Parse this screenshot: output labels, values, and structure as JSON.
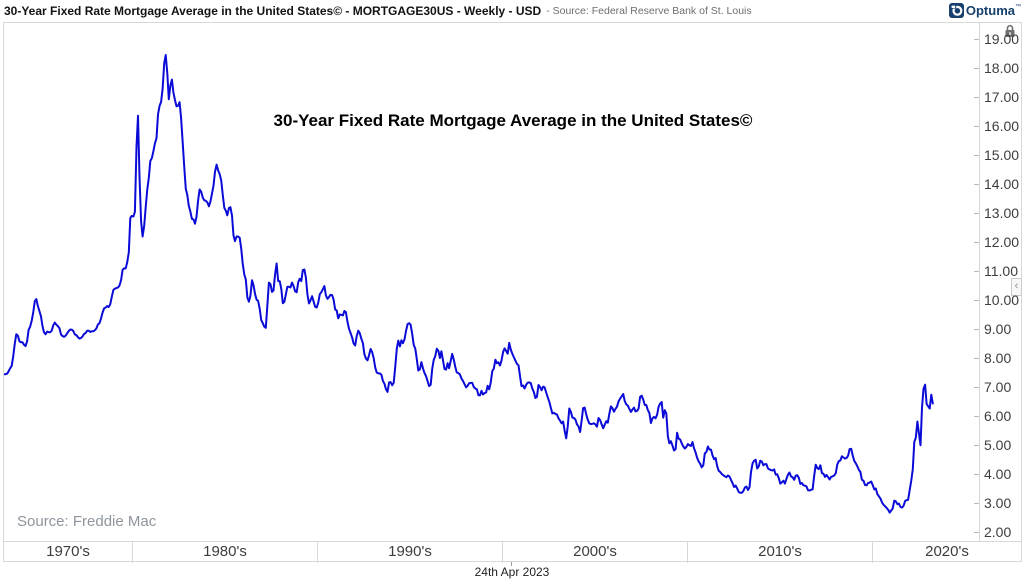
{
  "header": {
    "title_bold": "30-Year Fixed Rate Mortgage Average in the United States© - MORTGAGE30US - Weekly - USD",
    "title_source": "- Source: Federal Reserve Bank of St. Louis",
    "logo_text": "Optuma",
    "logo_tm": "™"
  },
  "footer": {
    "date_label": "24th Apr 2023"
  },
  "chart_data": {
    "type": "line",
    "title": "30-Year Fixed Rate Mortgage Average in the United States©",
    "source_annotation": "Source: Freddie Mac",
    "series_name": "MORTGAGE30US",
    "line_color": "#0b0bd8",
    "grid": false,
    "legend": false,
    "ylim": [
      2,
      19
    ],
    "y_ticks": [
      "19.00",
      "18.00",
      "17.00",
      "16.00",
      "15.00",
      "14.00",
      "13.00",
      "12.00",
      "11.00",
      "10.00",
      "9.00",
      "8.00",
      "7.00",
      "6.00",
      "5.00",
      "4.00",
      "3.00",
      "2.00"
    ],
    "x_range": [
      1973.0,
      2025.75
    ],
    "x_decades": {
      "boundaries": [
        1980,
        1990,
        2000,
        2010,
        2020
      ],
      "labels": [
        "1970's",
        "1980's",
        "1990's",
        "2000's",
        "2010's",
        "2020's"
      ]
    },
    "series": [
      {
        "name": "MORTGAGE30US",
        "start_year": 1973.0,
        "points_per_year": 12,
        "values": [
          7.44,
          7.44,
          7.46,
          7.54,
          7.65,
          7.73,
          8.05,
          8.5,
          8.82,
          8.77,
          8.58,
          8.54,
          8.54,
          8.46,
          8.41,
          8.58,
          8.97,
          9.09,
          9.28,
          9.59,
          9.96,
          10.03,
          9.79,
          9.62,
          9.43,
          9.1,
          8.89,
          8.82,
          8.91,
          8.89,
          8.89,
          8.94,
          9.13,
          9.22,
          9.15,
          9.1,
          9.02,
          8.81,
          8.76,
          8.73,
          8.77,
          8.85,
          8.93,
          8.98,
          8.98,
          8.93,
          8.81,
          8.79,
          8.72,
          8.67,
          8.69,
          8.75,
          8.83,
          8.86,
          8.94,
          8.94,
          8.9,
          8.92,
          8.92,
          8.96,
          9.02,
          9.16,
          9.2,
          9.36,
          9.57,
          9.71,
          9.74,
          9.79,
          9.76,
          9.86,
          10.11,
          10.35,
          10.39,
          10.41,
          10.43,
          10.5,
          10.69,
          11.04,
          11.09,
          11.09,
          11.3,
          11.64,
          12.83,
          12.9,
          12.88,
          13.04,
          15.28,
          16.35,
          14.26,
          12.71,
          12.19,
          12.56,
          13.2,
          13.79,
          14.21,
          14.79,
          14.9,
          15.13,
          15.4,
          15.58,
          16.4,
          16.7,
          16.83,
          17.28,
          18.16,
          18.45,
          17.82,
          16.92,
          17.4,
          17.6,
          17.16,
          16.89,
          16.68,
          16.7,
          16.82,
          16.27,
          15.43,
          14.61,
          13.83,
          13.62,
          13.25,
          13.04,
          12.8,
          12.78,
          12.63,
          12.87,
          13.43,
          13.81,
          13.73,
          13.54,
          13.44,
          13.42,
          13.37,
          13.23,
          13.39,
          13.65,
          13.94,
          14.42,
          14.67,
          14.47,
          14.35,
          14.13,
          13.64,
          13.18,
          13.08,
          12.92,
          13.17,
          13.2,
          12.91,
          12.22,
          12.03,
          12.19,
          12.19,
          12.14,
          11.78,
          11.26,
          10.88,
          10.71,
          10.08,
          9.94,
          10.14,
          10.68,
          10.51,
          10.2,
          10.01,
          9.97,
          9.7,
          9.31,
          9.2,
          9.08,
          9.04,
          9.83,
          10.6,
          10.54,
          10.28,
          10.33,
          10.89,
          11.26,
          10.65,
          10.65,
          10.38,
          9.89,
          9.93,
          10.2,
          10.46,
          10.46,
          10.43,
          10.6,
          10.48,
          10.3,
          10.27,
          10.61,
          10.73,
          10.65,
          11.03,
          11.05,
          10.77,
          10.2,
          9.88,
          9.99,
          10.13,
          9.95,
          9.77,
          9.74,
          9.9,
          10.2,
          10.27,
          10.37,
          10.48,
          10.16,
          10.04,
          10.1,
          10.18,
          10.17,
          10.01,
          9.67,
          9.64,
          9.37,
          9.5,
          9.49,
          9.47,
          9.62,
          9.58,
          9.24,
          9.01,
          8.86,
          8.71,
          8.5,
          8.43,
          8.76,
          8.94,
          8.85,
          8.67,
          8.51,
          8.13,
          7.98,
          7.92,
          8.09,
          8.31,
          8.21,
          7.99,
          7.68,
          7.5,
          7.47,
          7.47,
          7.42,
          7.21,
          7.11,
          6.92,
          6.83,
          7.16,
          7.17,
          7.06,
          7.15,
          7.68,
          8.32,
          8.6,
          8.4,
          8.61,
          8.51,
          8.64,
          8.93,
          9.17,
          9.2,
          9.15,
          8.83,
          8.46,
          8.32,
          7.96,
          7.57,
          7.61,
          7.86,
          7.64,
          7.48,
          7.38,
          7.2,
          7.03,
          7.08,
          7.62,
          7.93,
          8.07,
          8.32,
          8.25,
          8.0,
          8.23,
          7.92,
          7.62,
          7.6,
          7.82,
          7.65,
          7.9,
          8.14,
          7.94,
          7.69,
          7.5,
          7.48,
          7.43,
          7.29,
          7.21,
          7.1,
          6.99,
          7.04,
          7.13,
          7.14,
          7.14,
          7.0,
          6.95,
          6.92,
          6.72,
          6.71,
          6.87,
          6.74,
          6.79,
          6.81,
          7.04,
          6.92,
          7.15,
          7.55,
          7.63,
          7.94,
          7.82,
          7.85,
          7.74,
          7.91,
          8.21,
          8.33,
          8.24,
          8.15,
          8.52,
          8.29,
          8.15,
          8.03,
          7.91,
          7.8,
          7.75,
          7.38,
          7.03,
          7.05,
          6.95,
          7.08,
          7.15,
          7.16,
          7.13,
          6.95,
          6.82,
          6.62,
          6.66,
          7.07,
          7.0,
          6.89,
          7.01,
          6.99,
          6.81,
          6.65,
          6.49,
          6.29,
          6.09,
          6.11,
          6.07,
          6.05,
          5.92,
          5.84,
          5.75,
          5.81,
          5.48,
          5.23,
          5.63,
          6.26,
          6.15,
          5.95,
          5.93,
          5.88,
          5.71,
          5.64,
          5.45,
          5.83,
          6.27,
          6.29,
          6.06,
          5.87,
          5.75,
          5.72,
          5.73,
          5.75,
          5.71,
          5.63,
          5.93,
          5.86,
          5.72,
          5.58,
          5.7,
          5.82,
          5.77,
          6.07,
          6.33,
          6.27,
          6.15,
          6.25,
          6.32,
          6.51,
          6.6,
          6.68,
          6.76,
          6.52,
          6.4,
          6.36,
          6.24,
          6.14,
          6.22,
          6.29,
          6.16,
          6.18,
          6.26,
          6.66,
          6.7,
          6.57,
          6.38,
          6.38,
          6.21,
          6.1,
          5.76,
          5.92,
          5.97,
          5.92,
          6.04,
          6.32,
          6.43,
          6.48,
          5.94,
          6.2,
          6.09,
          5.29,
          5.06,
          5.13,
          4.98,
          4.81,
          4.86,
          5.42,
          5.22,
          5.19,
          5.06,
          4.95,
          4.88,
          4.93,
          5.03,
          4.99,
          4.97,
          5.1,
          4.89,
          4.74,
          4.56,
          4.43,
          4.35,
          4.23,
          4.3,
          4.71,
          4.76,
          4.95,
          4.84,
          4.84,
          4.64,
          4.51,
          4.55,
          4.27,
          4.11,
          4.07,
          4.0,
          3.96,
          3.92,
          3.89,
          3.95,
          3.91,
          3.8,
          3.68,
          3.55,
          3.6,
          3.5,
          3.38,
          3.35,
          3.35,
          3.41,
          3.53,
          3.57,
          3.45,
          3.54,
          4.07,
          4.37,
          4.46,
          4.49,
          4.19,
          4.26,
          4.46,
          4.43,
          4.3,
          4.34,
          4.34,
          4.19,
          4.16,
          4.13,
          4.12,
          4.16,
          3.98,
          3.99,
          3.86,
          3.67,
          3.71,
          3.77,
          3.67,
          3.84,
          3.98,
          4.05,
          3.91,
          3.89,
          3.8,
          3.94,
          3.96,
          3.87,
          3.66,
          3.69,
          3.61,
          3.6,
          3.57,
          3.44,
          3.43,
          3.46,
          3.47,
          3.94,
          4.32,
          4.2,
          4.17,
          4.3,
          4.03,
          4.01,
          3.9,
          3.97,
          3.89,
          3.81,
          3.9,
          3.92,
          3.95,
          4.03,
          4.33,
          4.44,
          4.47,
          4.61,
          4.57,
          4.53,
          4.55,
          4.63,
          4.86,
          4.87,
          4.64,
          4.46,
          4.37,
          4.27,
          4.14,
          4.07,
          3.8,
          3.77,
          3.62,
          3.61,
          3.69,
          3.7,
          3.74,
          3.62,
          3.47,
          3.5,
          3.31,
          3.23,
          3.16,
          3.02,
          2.94,
          2.89,
          2.83,
          2.77,
          2.67,
          2.74,
          2.81,
          3.08,
          3.06,
          2.96,
          2.98,
          2.87,
          2.84,
          2.9,
          3.07,
          3.1,
          3.11,
          3.45,
          3.76,
          4.17,
          5.11,
          5.25,
          5.81,
          5.41,
          4.99,
          6.29,
          6.94,
          7.08,
          6.42,
          6.33,
          6.26,
          6.73,
          6.43
        ]
      }
    ]
  }
}
